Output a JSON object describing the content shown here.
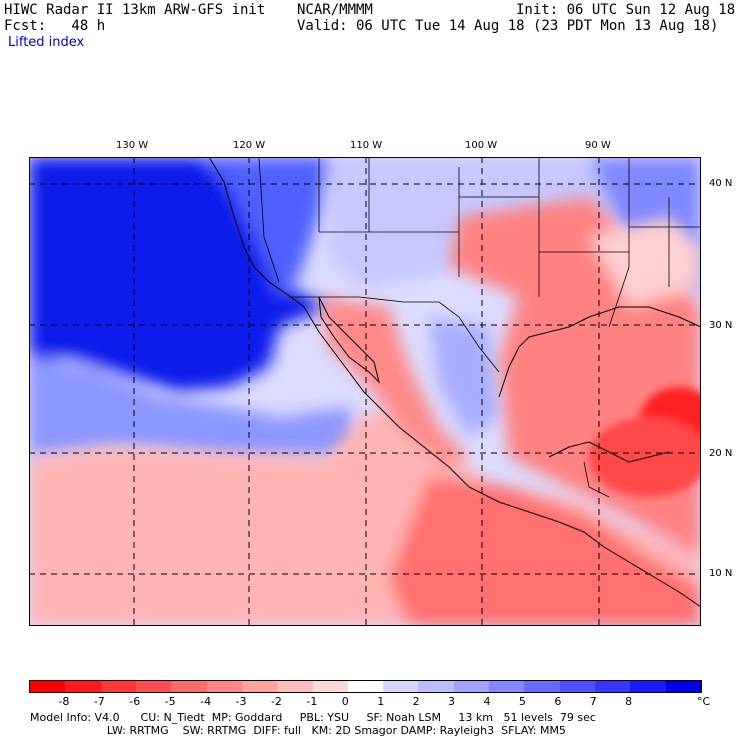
{
  "header": {
    "title_left": "HIWC Radar II 13km ARW-GFS init",
    "org": "NCAR/MMMM",
    "init": "Init: 06 UTC Sun 12 Aug 18",
    "fcst": "Fcst:   48 h",
    "valid": "Valid: 06 UTC Tue 14 Aug 18 (23 PDT Mon 13 Aug 18)",
    "field": "Lifted index"
  },
  "map": {
    "lon_labels": [
      "130 W",
      "120 W",
      "110 W",
      "100 W",
      "90 W"
    ],
    "lat_labels": [
      "40 N",
      "30 N",
      "20 N",
      "10 N"
    ]
  },
  "colorbar": {
    "labels": [
      "-8",
      "-7",
      "-6",
      "-5",
      "-4",
      "-3",
      "-2",
      "-1",
      "0",
      "1",
      "2",
      "3",
      "4",
      "5",
      "6",
      "7",
      "8"
    ],
    "unit": "°C",
    "colors": [
      "#ff0000",
      "#ff1a1a",
      "#ff3636",
      "#ff5050",
      "#ff6a6a",
      "#ff8686",
      "#ffa2a2",
      "#ffbcbc",
      "#ffd8d8",
      "#ffffff",
      "#d8d8ff",
      "#bcbcff",
      "#a2a2ff",
      "#8686ff",
      "#6a6aff",
      "#5050ff",
      "#3636ff",
      "#1a1aff",
      "#0000e8"
    ]
  },
  "footer": {
    "line1": "Model Info: V4.0      CU: N_Tiedt  MP: Goddard     PBL: YSU     SF: Noah LSM     13 km   51 levels  79 sec",
    "line2": "                      LW: RRTMG    SW: RRTMG  DIFF: full   KM: 2D Smagor DAMP: Rayleigh3  SFLAY: MM5"
  }
}
